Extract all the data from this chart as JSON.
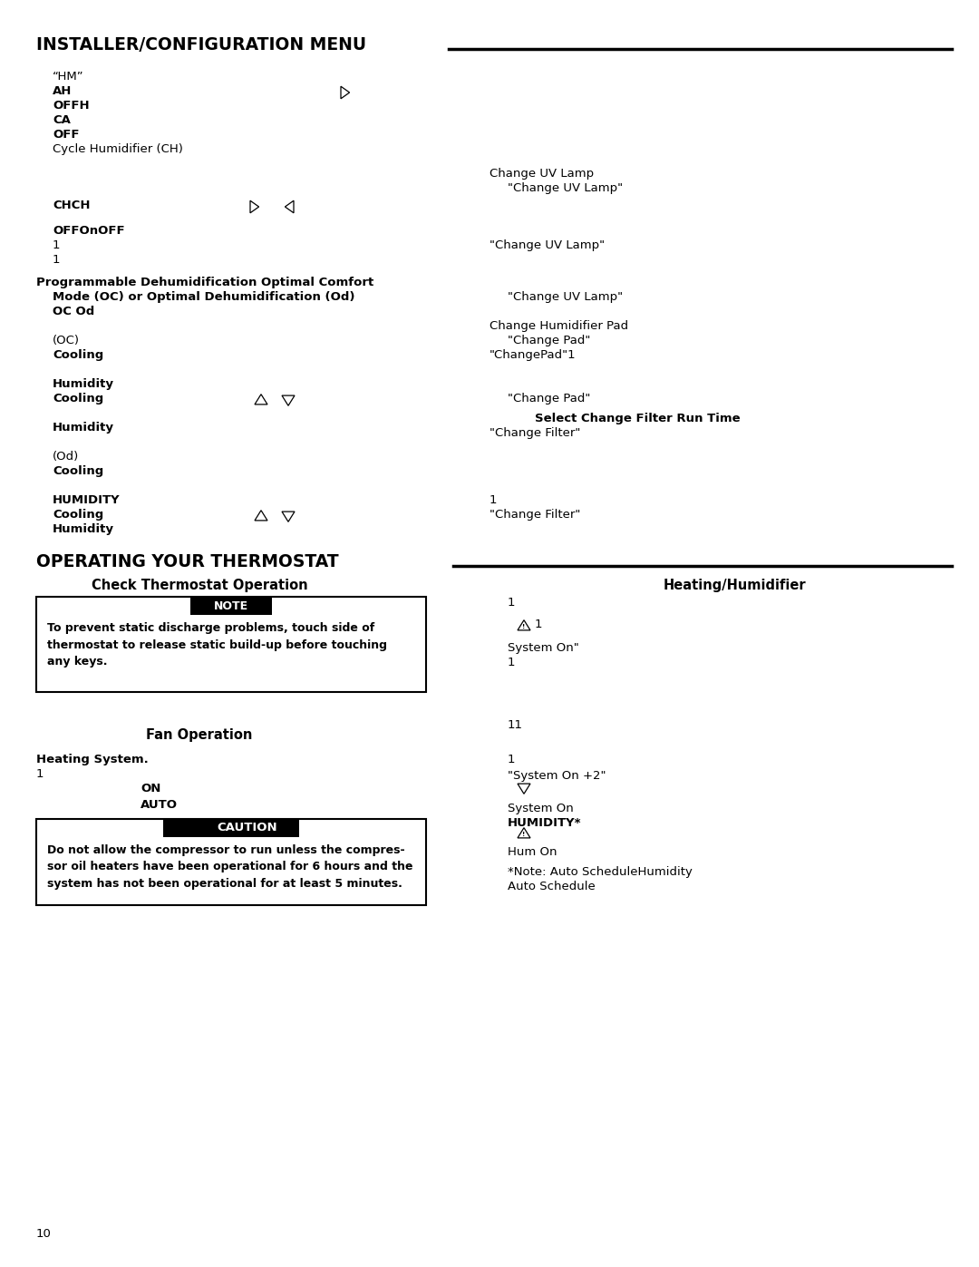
{
  "bg_color": "#ffffff",
  "page_width": 10.8,
  "page_height": 13.97,
  "title1": "INSTALLER/CONFIGURATION MENU",
  "title2": "OPERATING YOUR THERMOSTAT",
  "page_num": "10"
}
